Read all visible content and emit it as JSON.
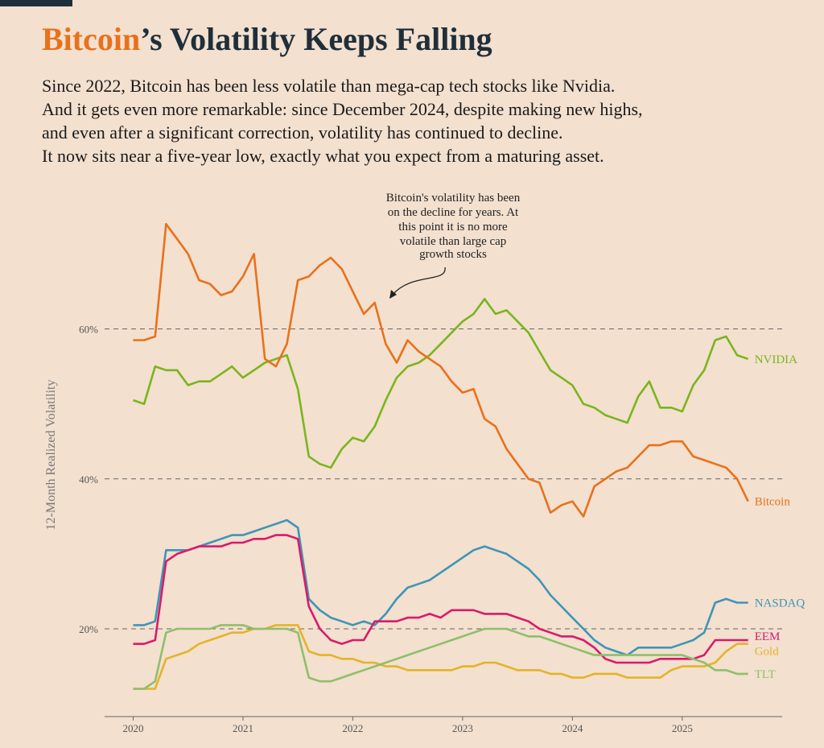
{
  "chart_data": {
    "type": "line",
    "title_highlight": "Bitcoin",
    "title_rest": "’s Volatility Keeps Falling",
    "subtitle": [
      "Since 2022, Bitcoin has been less volatile than mega-cap tech stocks like Nvidia.",
      "And it gets even more remarkable: since December 2024, despite making new highs,",
      "and even after a significant correction, volatility has continued to decline.",
      "It now sits near a five-year low, exactly what you expect from a maturing asset."
    ],
    "annotation": [
      "Bitcoin's volatility has been",
      "on the decline for years. At",
      "this point it is no more",
      "volatile than large cap",
      "growth stocks"
    ],
    "y_label": "12-Month Realized Volatility",
    "x": [
      2020.0,
      2020.1,
      2020.2,
      2020.3,
      2020.4,
      2020.5,
      2020.6,
      2020.7,
      2020.8,
      2020.9,
      2021.0,
      2021.1,
      2021.2,
      2021.3,
      2021.4,
      2021.5,
      2021.6,
      2021.7,
      2021.8,
      2021.9,
      2022.0,
      2022.1,
      2022.2,
      2022.3,
      2022.4,
      2022.5,
      2022.6,
      2022.7,
      2022.8,
      2022.9,
      2023.0,
      2023.1,
      2023.2,
      2023.3,
      2023.4,
      2023.5,
      2023.6,
      2023.7,
      2023.8,
      2023.9,
      2024.0,
      2024.1,
      2024.2,
      2024.3,
      2024.4,
      2024.5,
      2024.6,
      2024.7,
      2024.8,
      2024.9,
      2025.0,
      2025.1,
      2025.2,
      2025.3,
      2025.4,
      2025.5,
      2025.6
    ],
    "xlim": [
      2019.74,
      2025.91
    ],
    "xticks": [
      2020,
      2021,
      2022,
      2023,
      2024,
      2025
    ],
    "ylim": [
      8.3,
      78.1
    ],
    "yticks": [
      {
        "value": 20,
        "label": "20%"
      },
      {
        "value": 40,
        "label": "40%"
      },
      {
        "value": 60,
        "label": "60%"
      }
    ],
    "grid": true,
    "series": [
      {
        "name": "NVIDIA",
        "color": "#7ab51d",
        "values": [
          50.5,
          50,
          55,
          54.5,
          54.5,
          52.5,
          53,
          53,
          54,
          55,
          53.5,
          54.5,
          55.5,
          56,
          56.5,
          52,
          43,
          42,
          41.5,
          44,
          45.5,
          45,
          47,
          50.5,
          53.5,
          55,
          55.5,
          56.5,
          58,
          59.5,
          61,
          62,
          64,
          62,
          62.5,
          61,
          59.5,
          57,
          54.5,
          53.5,
          52.5,
          50,
          49.5,
          48.5,
          48,
          47.5,
          51,
          53,
          49.5,
          49.5,
          49,
          52.5,
          54.5,
          58.5,
          59,
          56.5,
          56
        ]
      },
      {
        "name": "Bitcoin",
        "color": "#e8711c",
        "values": [
          58.5,
          58.5,
          59,
          74,
          72,
          70,
          66.5,
          66,
          64.5,
          65,
          67,
          70,
          56,
          55,
          58,
          66.5,
          67,
          68.5,
          69.5,
          68,
          65,
          62,
          63.5,
          58,
          55.5,
          58.5,
          57,
          56,
          55,
          53,
          51.5,
          52,
          48,
          47,
          44,
          42,
          40,
          39.5,
          35.5,
          36.5,
          37,
          35,
          39,
          40,
          41,
          41.5,
          43,
          44.5,
          44.5,
          45,
          45,
          43,
          42.5,
          42,
          41.5,
          40,
          37
        ]
      },
      {
        "name": "NASDAQ",
        "color": "#3e95b5",
        "values": [
          20.5,
          20.5,
          21,
          30.5,
          30.5,
          30.5,
          31,
          31.5,
          32,
          32.5,
          32.5,
          33,
          33.5,
          34,
          34.5,
          33.5,
          24,
          22.5,
          21.5,
          21,
          20.5,
          21,
          20.5,
          22,
          24,
          25.5,
          26,
          26.5,
          27.5,
          28.5,
          29.5,
          30.5,
          31,
          30.5,
          30,
          29,
          28,
          26.5,
          24.5,
          23,
          21.5,
          20,
          18.5,
          17.5,
          17,
          16.5,
          17.5,
          17.5,
          17.5,
          17.5,
          18,
          18.5,
          19.5,
          23.5,
          24,
          23.5,
          23.5
        ]
      },
      {
        "name": "EEM",
        "color": "#d81b6a",
        "values": [
          18,
          18,
          18.5,
          29,
          30,
          30.5,
          31,
          31,
          31,
          31.5,
          31.5,
          32,
          32,
          32.5,
          32.5,
          32,
          23,
          20,
          18.5,
          18,
          18.5,
          18.5,
          21,
          21,
          21,
          21.5,
          21.5,
          22,
          21.5,
          22.5,
          22.5,
          22.5,
          22,
          22,
          22,
          21.5,
          21,
          20,
          19.5,
          19,
          19,
          18.5,
          17.5,
          16,
          15.5,
          15.5,
          15.5,
          15.5,
          16,
          16,
          16,
          16,
          16.5,
          18.5,
          18.5,
          18.5,
          18.5
        ]
      },
      {
        "name": "Gold",
        "color": "#e5b32a",
        "values": [
          12,
          12,
          12,
          16,
          16.5,
          17,
          18,
          18.5,
          19,
          19.5,
          19.5,
          20,
          20,
          20.5,
          20.5,
          20.5,
          17,
          16.5,
          16.5,
          16,
          16,
          15.5,
          15.5,
          15,
          15,
          14.5,
          14.5,
          14.5,
          14.5,
          14.5,
          15,
          15,
          15.5,
          15.5,
          15,
          14.5,
          14.5,
          14.5,
          14,
          14,
          13.5,
          13.5,
          14,
          14,
          14,
          13.5,
          13.5,
          13.5,
          13.5,
          14.5,
          15,
          15,
          15,
          15.5,
          17,
          18,
          18
        ]
      },
      {
        "name": "TLT",
        "color": "#8fbf6a",
        "values": [
          12,
          12,
          13,
          19.5,
          20,
          20,
          20,
          20,
          20.5,
          20.5,
          20.5,
          20,
          20,
          20,
          20,
          19.5,
          13.5,
          13,
          13,
          13.5,
          14,
          14.5,
          15,
          15.5,
          16,
          16.5,
          17,
          17.5,
          18,
          18.5,
          19,
          19.5,
          20,
          20,
          20,
          19.5,
          19,
          19,
          18.5,
          18,
          17.5,
          17,
          16.5,
          16.5,
          16.5,
          16.5,
          16.5,
          16.5,
          16.5,
          16.5,
          16.5,
          16,
          15.5,
          14.5,
          14.5,
          14,
          14
        ]
      }
    ]
  }
}
